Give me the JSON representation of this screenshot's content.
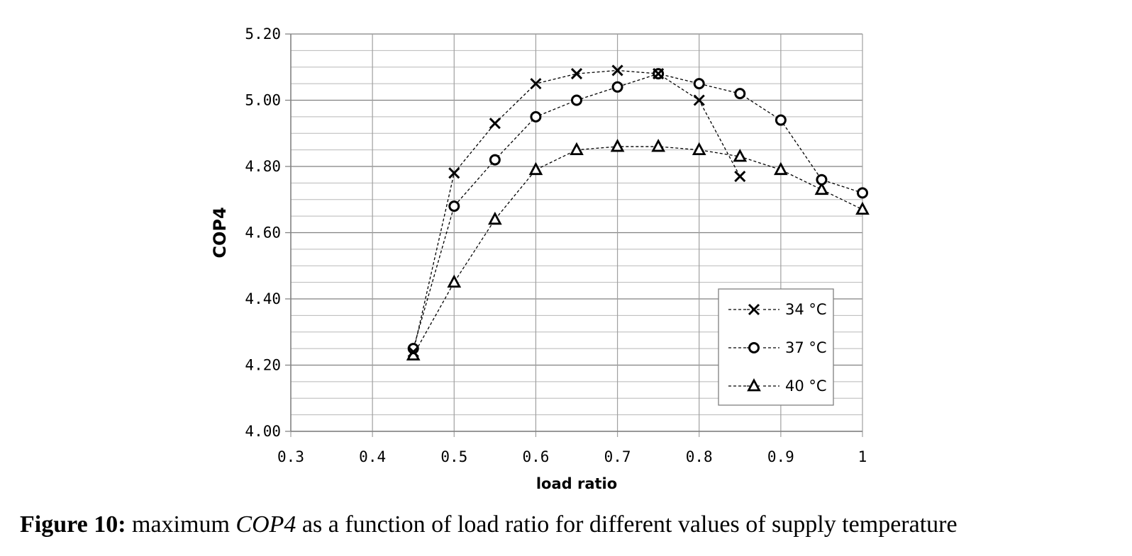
{
  "chart_data": {
    "type": "line",
    "xlabel": "load ratio",
    "ylabel": "COP4",
    "xlim": [
      0.3,
      1.0
    ],
    "ylim": [
      4.0,
      5.2
    ],
    "xticks": [
      "0.3",
      "0.4",
      "0.5",
      "0.6",
      "0.7",
      "0.8",
      "0.9",
      "1"
    ],
    "yticks": [
      "4.00",
      "4.20",
      "4.40",
      "4.60",
      "4.80",
      "5.00",
      "5.20"
    ],
    "y_minor_step": 0.05,
    "grid": true,
    "line_style": "dashed",
    "legend_position": "bottom-right",
    "series": [
      {
        "name": "34 °C",
        "marker": "x",
        "x": [
          0.45,
          0.5,
          0.55,
          0.6,
          0.65,
          0.7,
          0.75,
          0.8,
          0.85
        ],
        "y": [
          4.24,
          4.78,
          4.93,
          5.05,
          5.08,
          5.09,
          5.08,
          5.0,
          4.77
        ]
      },
      {
        "name": "37 °C",
        "marker": "circle",
        "x": [
          0.45,
          0.5,
          0.55,
          0.6,
          0.65,
          0.7,
          0.75,
          0.8,
          0.85,
          0.9,
          0.95,
          1.0
        ],
        "y": [
          4.25,
          4.68,
          4.82,
          4.95,
          5.0,
          5.04,
          5.08,
          5.05,
          5.02,
          4.94,
          4.76,
          4.72
        ]
      },
      {
        "name": "40 °C",
        "marker": "triangle",
        "x": [
          0.45,
          0.5,
          0.55,
          0.6,
          0.65,
          0.7,
          0.75,
          0.8,
          0.85,
          0.9,
          0.95,
          1.0
        ],
        "y": [
          4.23,
          4.45,
          4.64,
          4.79,
          4.85,
          4.86,
          4.86,
          4.85,
          4.83,
          4.79,
          4.73,
          4.67
        ]
      }
    ]
  },
  "caption": {
    "lead": "Figure 10:",
    "before": " maximum ",
    "italic": "COP4",
    "after": " as a function of load ratio for different values of supply temperature"
  }
}
